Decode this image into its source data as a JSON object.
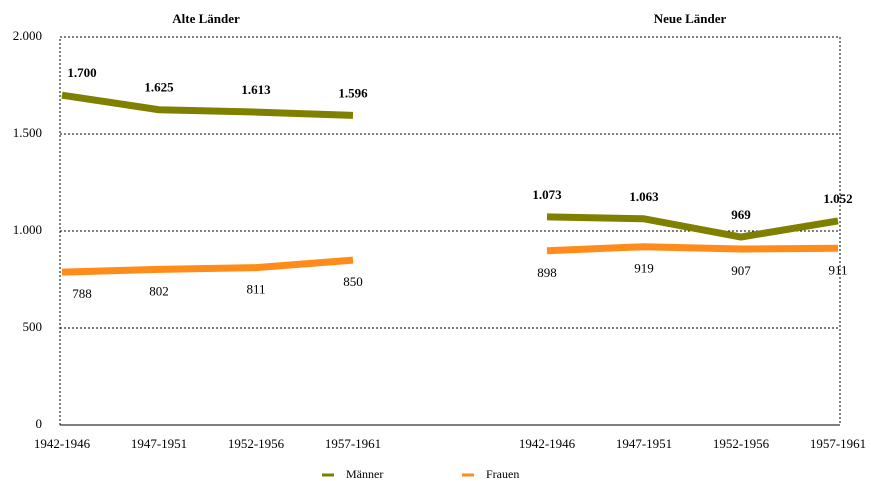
{
  "chart_data": {
    "type": "line",
    "panel_titles": [
      "Alte Länder",
      "Neue Länder"
    ],
    "categories": [
      "1942-1946",
      "1947-1951",
      "1952-1956",
      "1957-1961",
      null,
      "1942-1946",
      "1947-1951",
      "1952-1956",
      "1957-1961"
    ],
    "series": [
      {
        "name": "Männer",
        "color": "#808000",
        "values": [
          1700,
          1625,
          1613,
          1596,
          null,
          1073,
          1063,
          969,
          1052
        ],
        "value_labels": [
          "1.700",
          "1.625",
          "1.613",
          "1.596",
          null,
          "1.073",
          "1.063",
          "969",
          "1.052"
        ]
      },
      {
        "name": "Frauen",
        "color": "#ff8c1a",
        "values": [
          788,
          802,
          811,
          850,
          null,
          898,
          919,
          907,
          911
        ]
      }
    ],
    "ylim": [
      0,
      2000
    ],
    "yticks": [
      0,
      500,
      {
        "value": 1000,
        "label": "1.000"
      },
      {
        "value": 1500,
        "label": "1.500"
      },
      {
        "value": 2000,
        "label": "2.000"
      }
    ],
    "grid": true
  }
}
